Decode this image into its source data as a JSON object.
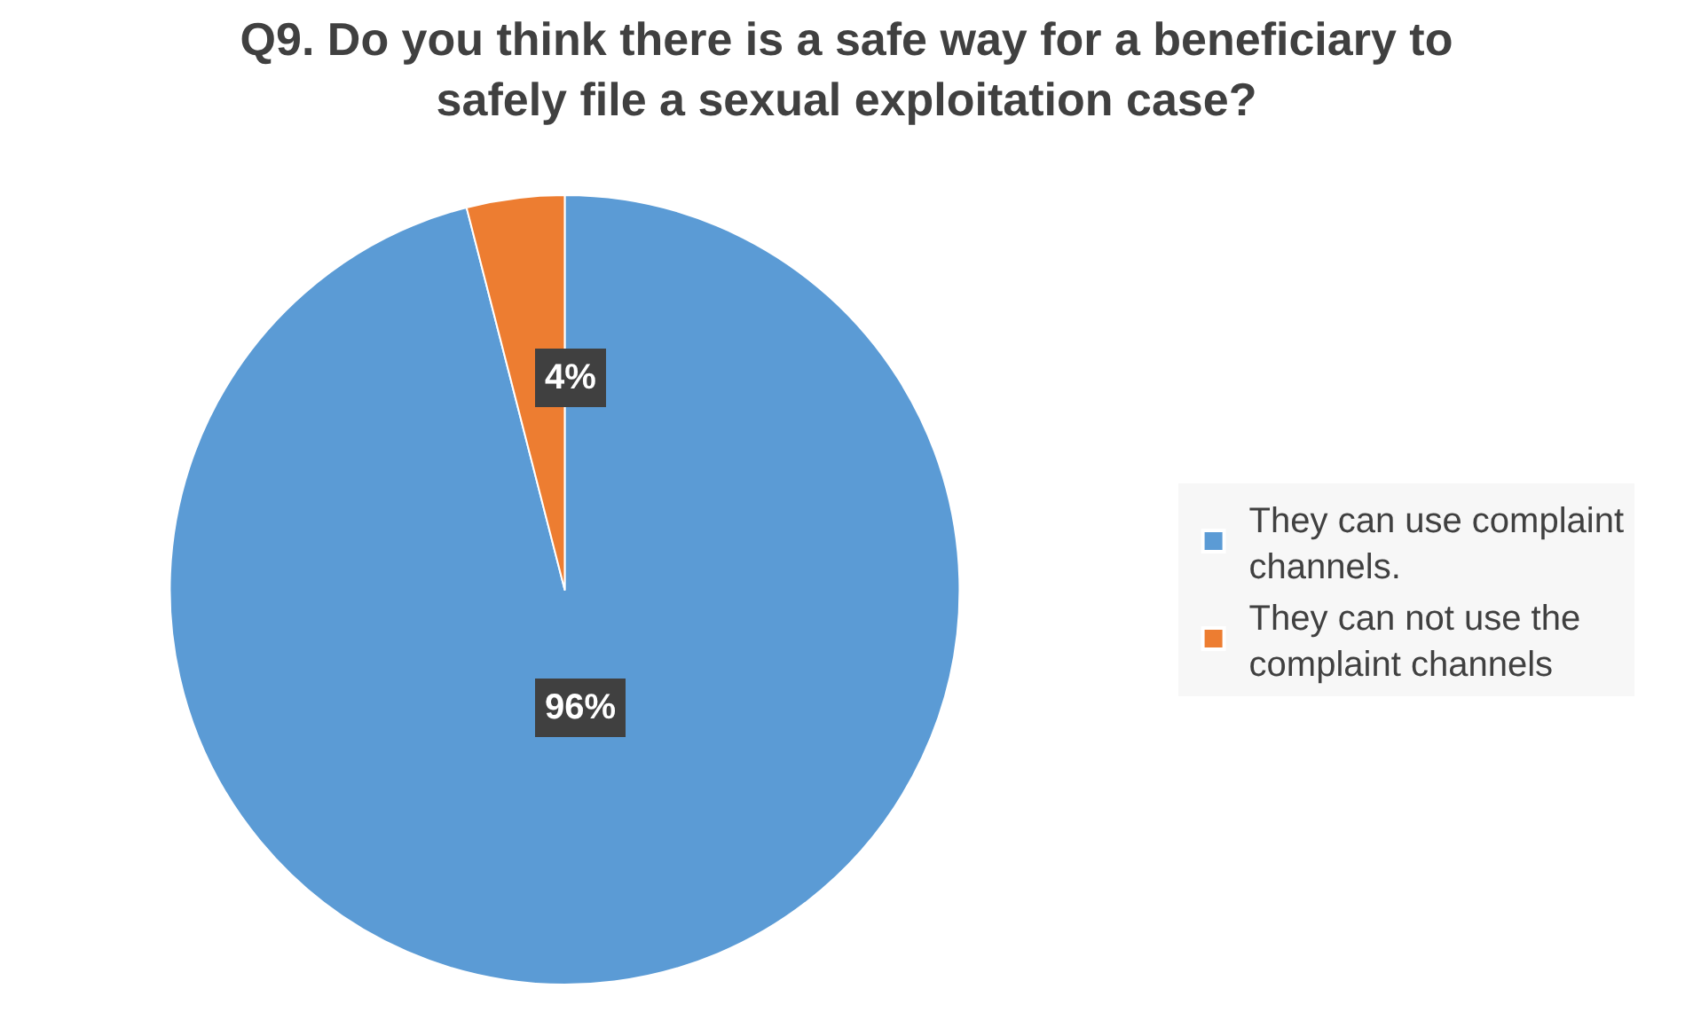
{
  "chart_data": {
    "type": "pie",
    "title": "Q9. Do you think there is a safe way for a beneficiary to safely file a sexual exploitation case?",
    "categories": [
      "They can use complaint channels.",
      "They can not use the complaint channels"
    ],
    "values": [
      96,
      4
    ],
    "colors": [
      "#5b9bd5",
      "#ed7d31"
    ],
    "value_labels": [
      "96%",
      "4%"
    ],
    "legend": "right"
  }
}
